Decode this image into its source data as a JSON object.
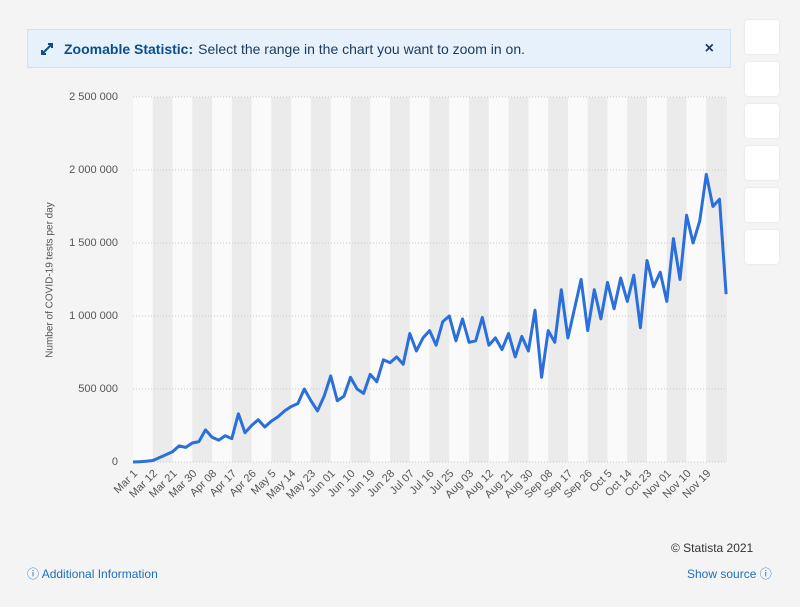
{
  "banner": {
    "label": "Zoomable Statistic:",
    "text": "Select the range in the chart you want to zoom in on.",
    "close": "×"
  },
  "footer": {
    "copyright": "© Statista 2021",
    "additional": "Additional Information",
    "source": "Show source"
  },
  "chart_data": {
    "type": "line",
    "y_label": "Number of COVID-19 tests per day",
    "color": "#2a6fdb",
    "grid": true,
    "ylim": [
      0,
      2500000
    ],
    "yticks": [
      0,
      {
        "value": 500000,
        "label": "500 000"
      },
      {
        "value": 1000000,
        "label": "1 000 000"
      },
      {
        "value": 1500000,
        "label": "1 500 000"
      },
      {
        "value": 2000000,
        "label": "2 000 000"
      },
      {
        "value": 2500000,
        "label": "2 500 000"
      }
    ],
    "categories": [
      "Mar 1",
      null,
      null,
      "Mar 12",
      null,
      null,
      "Mar 21",
      null,
      null,
      "Mar 30",
      null,
      null,
      "Apr 08",
      null,
      null,
      "Apr 17",
      null,
      null,
      "Apr 26",
      null,
      null,
      "May 5",
      null,
      null,
      "May 14",
      null,
      null,
      "May 23",
      null,
      null,
      "Jun 01",
      null,
      null,
      "Jun 10",
      null,
      null,
      "Jun 19",
      null,
      null,
      "Jun 28",
      null,
      null,
      "Jul 07",
      null,
      null,
      "Jul 16",
      null,
      null,
      "Jul 25",
      null,
      null,
      "Aug 03",
      null,
      null,
      "Aug 12",
      null,
      null,
      "Aug 21",
      null,
      null,
      "Aug 30",
      null,
      null,
      "Sep 08",
      null,
      null,
      "Sep 17",
      null,
      null,
      "Sep 26",
      null,
      null,
      "Oct 5",
      null,
      null,
      "Oct 14",
      null,
      null,
      "Oct 23",
      null,
      null,
      "Nov 01",
      null,
      null,
      "Nov 10",
      null,
      null,
      "Nov 19",
      null,
      null,
      null
    ],
    "values": [
      0,
      2000,
      5000,
      10000,
      30000,
      50000,
      70000,
      110000,
      100000,
      130000,
      140000,
      220000,
      170000,
      150000,
      180000,
      160000,
      330000,
      200000,
      250000,
      290000,
      240000,
      280000,
      310000,
      350000,
      380000,
      400000,
      500000,
      420000,
      350000,
      450000,
      590000,
      420000,
      450000,
      580000,
      500000,
      470000,
      600000,
      550000,
      700000,
      680000,
      720000,
      670000,
      880000,
      760000,
      850000,
      900000,
      800000,
      960000,
      1000000,
      830000,
      980000,
      820000,
      830000,
      990000,
      800000,
      850000,
      770000,
      880000,
      720000,
      860000,
      760000,
      1040000,
      580000,
      900000,
      820000,
      1180000,
      850000,
      1050000,
      1250000,
      900000,
      1180000,
      980000,
      1230000,
      1050000,
      1260000,
      1100000,
      1280000,
      920000,
      1380000,
      1200000,
      1300000,
      1100000,
      1530000,
      1250000,
      1690000,
      1500000,
      1650000,
      1970000,
      1750000,
      1800000,
      1150000
    ]
  }
}
